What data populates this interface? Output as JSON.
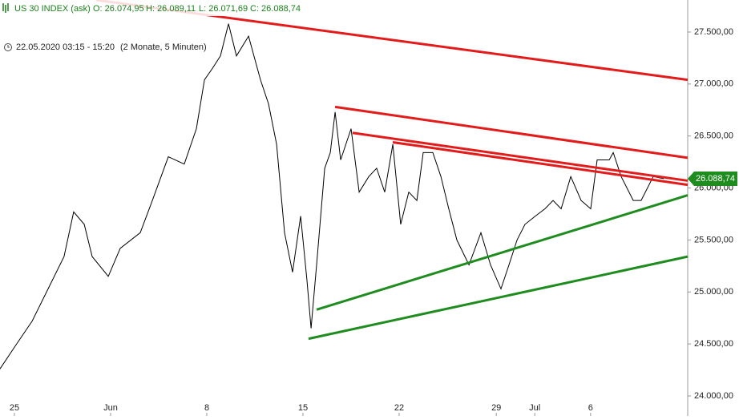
{
  "chart_data": {
    "type": "line",
    "title": "US 30 INDEX (ask)",
    "ohlc": [
      "O: 26.074,95",
      "H: 26.089,11",
      "L: 26.071,69",
      "C: 26.088,74"
    ],
    "period": "22.05.2020 03:15 - 15:20",
    "period_note": "(2 Monate, 5 Minuten)",
    "last_label": "26.088,74",
    "last_value": 26088.74,
    "color": "#000000",
    "x": [
      0,
      0.83,
      1.67,
      2.5,
      3.33,
      3.83,
      4.38,
      4.79,
      5.63,
      6.25,
      7.29,
      7.92,
      8.75,
      9.58,
      10.21,
      10.63,
      11.04,
      11.46,
      11.88,
      12.29,
      12.92,
      13.54,
      13.96,
      14.38,
      14.79,
      15.21,
      15.63,
      15.96,
      16.17,
      16.46,
      16.88,
      17.17,
      17.42,
      17.71,
      18.25,
      18.67,
      19.17,
      19.58,
      20,
      20.42,
      20.83,
      21.25,
      21.67,
      22,
      22.5,
      22.92,
      23.33,
      23.75,
      24.38,
      25,
      25.5,
      26.04,
      26.46,
      26.88,
      27.29,
      27.83,
      28.33,
      28.75,
      29.17,
      29.67,
      30.21,
      30.71,
      31.04,
      31.67,
      31.88,
      32.29,
      32.92,
      33.33,
      33.96,
      34.5
    ],
    "values": [
      24260,
      24490,
      24720,
      25030,
      25340,
      25770,
      25650,
      25340,
      25150,
      25420,
      25570,
      25880,
      26300,
      26230,
      26570,
      27040,
      27150,
      27270,
      27580,
      27270,
      27460,
      27040,
      26810,
      26420,
      25570,
      25190,
      25730,
      25110,
      24650,
      25260,
      26190,
      26340,
      26730,
      26270,
      26570,
      25960,
      26110,
      26190,
      25960,
      26420,
      25650,
      25960,
      25880,
      26340,
      26340,
      26110,
      25800,
      25500,
      25260,
      25570,
      25260,
      25030,
      25260,
      25500,
      25650,
      25730,
      25800,
      25880,
      25800,
      26110,
      25880,
      25800,
      26270,
      26270,
      26340,
      26110,
      25880,
      25880,
      26110,
      26090
    ],
    "trendlines": [
      {
        "color": "#e31b1b",
        "x": [
          5,
          35.75
        ],
        "values": [
          27808,
          27040
        ]
      },
      {
        "color": "#e31b1b",
        "x": [
          17.42,
          35.75
        ],
        "values": [
          26780,
          26290
        ]
      },
      {
        "color": "#e31b1b",
        "x": [
          18.33,
          35.75
        ],
        "values": [
          26530,
          26070
        ]
      },
      {
        "color": "#e31b1b",
        "x": [
          20.42,
          35.75
        ],
        "values": [
          26440,
          26030
        ]
      },
      {
        "color": "#1e8c1e",
        "x": [
          16.46,
          35.75
        ],
        "values": [
          24830,
          25930
        ]
      },
      {
        "color": "#1e8c1e",
        "x": [
          16.04,
          35.75
        ],
        "values": [
          24550,
          25340
        ]
      }
    ],
    "xlim": [
      0,
      35.75
    ],
    "xticks": [
      {
        "value": 0.75,
        "label": "25"
      },
      {
        "value": 5.75,
        "label": "Jun"
      },
      {
        "value": 10.75,
        "label": "8"
      },
      {
        "value": 15.75,
        "label": "15"
      },
      {
        "value": 20.75,
        "label": "22"
      },
      {
        "value": 25.8,
        "label": "29"
      },
      {
        "value": 27.8,
        "label": "Jul"
      },
      {
        "value": 30.7,
        "label": "6"
      }
    ],
    "ylim": [
      23807,
      27808
    ],
    "yticks": [
      {
        "value": 24000,
        "label": "24.000,00"
      },
      {
        "value": 24500,
        "label": "24.500,00"
      },
      {
        "value": 25000,
        "label": "25.000,00"
      },
      {
        "value": 25500,
        "label": "25.500,00"
      },
      {
        "value": 26000,
        "label": "26.000,00"
      },
      {
        "value": 26500,
        "label": "26.500,00"
      },
      {
        "value": 27000,
        "label": "27.000,00"
      },
      {
        "value": 27500,
        "label": "27.500,00"
      }
    ]
  }
}
